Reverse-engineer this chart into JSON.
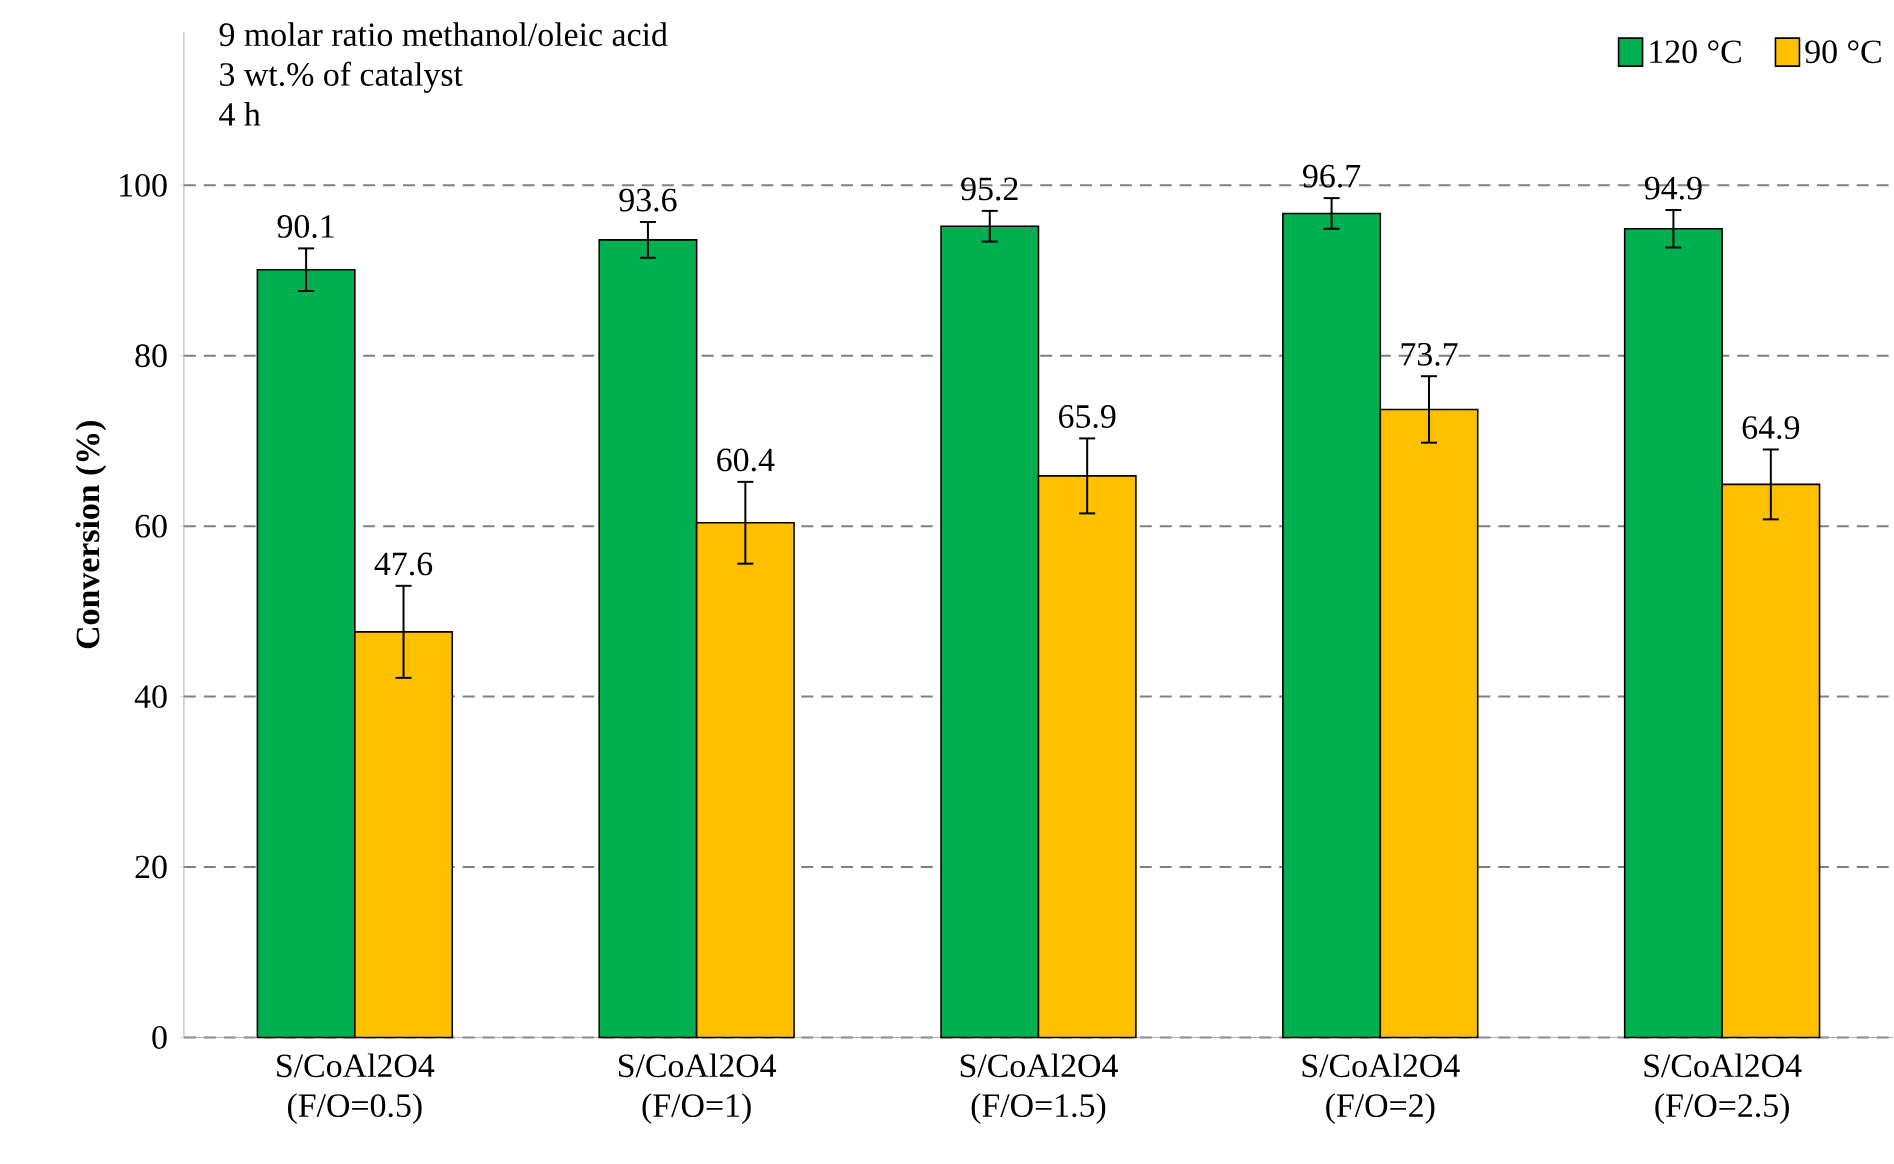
{
  "chart_data": {
    "type": "bar",
    "ylabel": "Conversion (%)",
    "annotations": [
      "9 molar ratio methanol/oleic acid",
      "3 wt.% of catalyst",
      "4 h"
    ],
    "categories": [
      "S/CoAl2O4 (F/O=0.5)",
      "S/CoAl2O4 (F/O=1)",
      "S/CoAl2O4 (F/O=1.5)",
      "S/CoAl2O4 (F/O=2)",
      "S/CoAl2O4 (F/O=2.5)"
    ],
    "series": [
      {
        "name": "120 °C",
        "color": "#00b050",
        "values": [
          90.1,
          93.6,
          95.2,
          96.7,
          94.9
        ],
        "errors": [
          2.5,
          2.1,
          1.8,
          1.8,
          2.2
        ]
      },
      {
        "name": "90 °C",
        "color": "#ffc000",
        "values": [
          47.6,
          60.4,
          65.9,
          73.7,
          64.9
        ],
        "errors": [
          5.4,
          4.8,
          4.4,
          3.9,
          4.1
        ]
      }
    ],
    "ylim": [
      0,
      118
    ],
    "yticks": [
      0,
      20,
      40,
      60,
      80,
      100
    ],
    "grid": "y",
    "legend": "top right",
    "data_labels": true
  }
}
